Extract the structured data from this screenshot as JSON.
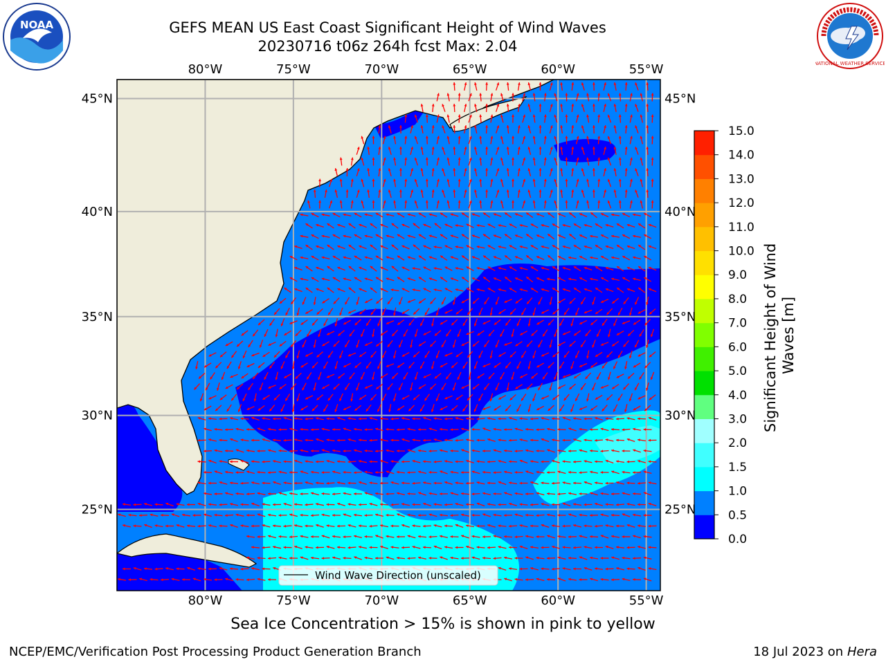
{
  "header": {
    "title_line1": "GEFS MEAN US East Coast Significant Height of Wind Waves",
    "title_line2": "20230716 t06z 264h fcst   Max: 2.04",
    "left_logo_text": "NOAA",
    "right_logo_text": "NATIONAL WEATHER SERVICE"
  },
  "map": {
    "lon_labels": [
      "80°W",
      "75°W",
      "70°W",
      "65°W",
      "60°W",
      "55°W"
    ],
    "lat_labels": [
      "45°N",
      "40°N",
      "35°N",
      "30°N",
      "25°N"
    ],
    "lon_values": [
      -80,
      -75,
      -70,
      -65,
      -60,
      -55
    ],
    "lat_values": [
      45,
      40,
      35,
      30,
      25
    ],
    "extent": {
      "lon_min": -85,
      "lon_max": -54.2,
      "lat_min": 20.5,
      "lat_max": 45.8
    },
    "legend_label": "Wind Wave Direction (unscaled)",
    "arrow_color": "#ff0000",
    "land_color": "#efeddb",
    "grid_color": "#b0b0b0"
  },
  "colorbar": {
    "label": "Significant Height of Wind Waves [m]",
    "tick_labels": [
      "0.0",
      "0.5",
      "1.0",
      "1.5",
      "2.0",
      "3.0",
      "4.0",
      "5.0",
      "6.0",
      "7.0",
      "8.0",
      "9.0",
      "10.0",
      "11.0",
      "12.0",
      "13.0",
      "14.0",
      "15.0"
    ],
    "colors": [
      "#0000ff",
      "#0080ff",
      "#00ffff",
      "#40ffff",
      "#a0ffff",
      "#60ff80",
      "#00e000",
      "#40f000",
      "#80ff00",
      "#c0ff00",
      "#ffff00",
      "#ffe000",
      "#ffc000",
      "#ffa000",
      "#ff8000",
      "#ff5000",
      "#ff2000"
    ]
  },
  "note": "Sea Ice Concentration > 15% is shown in pink to yellow",
  "footer": {
    "left": "NCEP/EMC/Verification Post Processing Product Generation Branch",
    "date": "18 Jul 2023 on ",
    "machine": "Hera"
  }
}
